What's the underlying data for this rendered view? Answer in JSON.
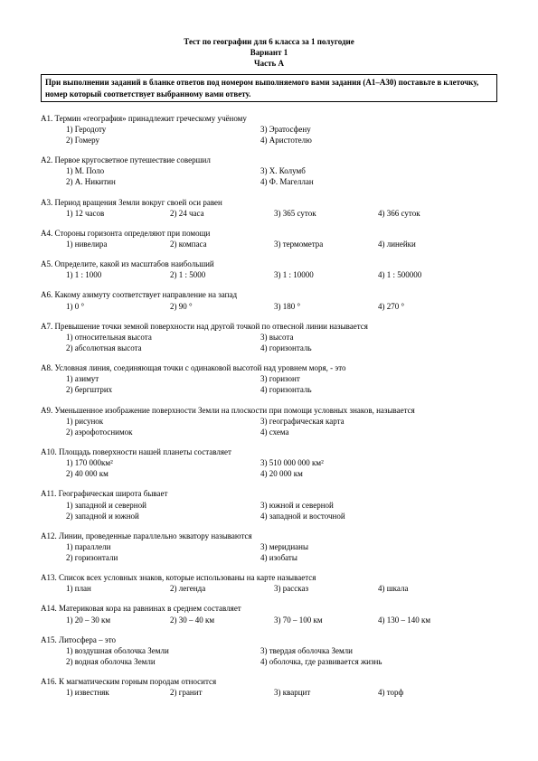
{
  "title_line1": "Тест по географии для 6 класса за 1 полугодие",
  "title_line2": "Вариант 1",
  "title_line3": "Часть А",
  "instruction": "При выполнении заданий в бланке ответов под номером выполняемого вами задания (А1–А30) поставьте в клеточку, номер который соответствует выбранному вами ответу.",
  "questions": [
    {
      "num": "А1.",
      "stem": "Термин «география» принадлежит греческому учёному",
      "layout": "cols2",
      "opts": [
        "1) Геродоту",
        "2) Гомеру",
        "3) Эратосфену",
        "4) Аристотелю"
      ]
    },
    {
      "num": "А2.",
      "stem": "Первое кругосветное путешествие совершил",
      "layout": "cols2",
      "opts": [
        "1) М. Поло",
        "2) А. Никитин",
        "3) Х. Колумб",
        "4) Ф. Магеллан"
      ]
    },
    {
      "num": "А3.",
      "stem": "Период вращения Земли вокруг своей оси равен",
      "layout": "cols4",
      "opts": [
        "1) 12 часов",
        "2) 24 часа",
        "3) 365 суток",
        "4) 366 суток"
      ]
    },
    {
      "num": "А4.",
      "stem": "Стороны горизонта определяют при помощи",
      "layout": "cols4",
      "opts": [
        "1) нивелира",
        "2) компаса",
        "3) термометра",
        "4) линейки"
      ]
    },
    {
      "num": "А5.",
      "stem": "Определите, какой из масштабов наибольший",
      "layout": "cols4",
      "opts": [
        "1) 1 : 1000",
        "2) 1 : 5000",
        "3) 1 : 10000",
        "4) 1 : 500000"
      ]
    },
    {
      "num": "А6.",
      "stem": "Какому азимуту соответствует направление на запад",
      "layout": "cols4",
      "opts": [
        "1) 0 °",
        "2) 90 °",
        "3) 180 °",
        "4) 270 °"
      ]
    },
    {
      "num": "А7.",
      "stem": "Превышение точки земной поверхности над другой точкой по отвесной линии называется",
      "layout": "cols2",
      "opts": [
        "1) относительная высота",
        "2) абсолютная высота",
        "3) высота",
        "4) горизонталь"
      ]
    },
    {
      "num": "А8.",
      "stem": "Условная линия, соединяющая точки с одинаковой высотой над уровнем моря, - это",
      "layout": "cols2",
      "opts": [
        "1) азимут",
        "2) бергштрих",
        "3) горизонт",
        "4) горизонталь"
      ]
    },
    {
      "num": "А9.",
      "stem": "Уменьшенное изображение поверхности Земли на плоскости при помощи условных знаков, называется",
      "layout": "cols2",
      "opts": [
        "1) рисунок",
        "2) аэрофотоснимок",
        "3) географическая карта",
        "4) схема"
      ]
    },
    {
      "num": "А10.",
      "stem": "Площадь поверхности нашей планеты составляет",
      "layout": "cols2",
      "opts": [
        "1) 170 000км²",
        "2) 40 000 км",
        "3) 510 000 000 км²",
        "4) 20 000 км"
      ]
    },
    {
      "num": "А11.",
      "stem": "Географическая широта бывает",
      "layout": "cols2",
      "opts": [
        "1) западной и северной",
        "2) западной и южной",
        "3) южной и северной",
        "4) западной и восточной"
      ]
    },
    {
      "num": "А12.",
      "stem": "Линии, проведенные параллельно экватору называются",
      "layout": "cols2",
      "opts": [
        "1) параллели",
        "2) горизонтали",
        "3) меридианы",
        "4) изобаты"
      ]
    },
    {
      "num": "А13.",
      "stem": "Список всех условных знаков, которые использованы на карте называется",
      "layout": "cols4",
      "opts": [
        "1) план",
        "2) легенда",
        "3) рассказ",
        "4) шкала"
      ]
    },
    {
      "num": "А14.",
      "stem": "Материковая кора на равнинах в среднем составляет",
      "layout": "cols4",
      "opts": [
        "1) 20 – 30 км",
        "2) 30 – 40 км",
        "3) 70 – 100 км",
        "4) 130 – 140 км"
      ]
    },
    {
      "num": "А15.",
      "stem": "Литосфера – это",
      "layout": "cols2",
      "opts": [
        "1) воздушная оболочка Земли",
        "2) водная оболочка Земли",
        "3) твердая оболочка Земли",
        "4) оболочка, где развивается жизнь"
      ]
    },
    {
      "num": "А16.",
      "stem": "К магматическим горным породам относится",
      "layout": "cols4",
      "opts": [
        "1) известняк",
        "2) гранит",
        "3) кварцит",
        "4) торф"
      ]
    }
  ]
}
